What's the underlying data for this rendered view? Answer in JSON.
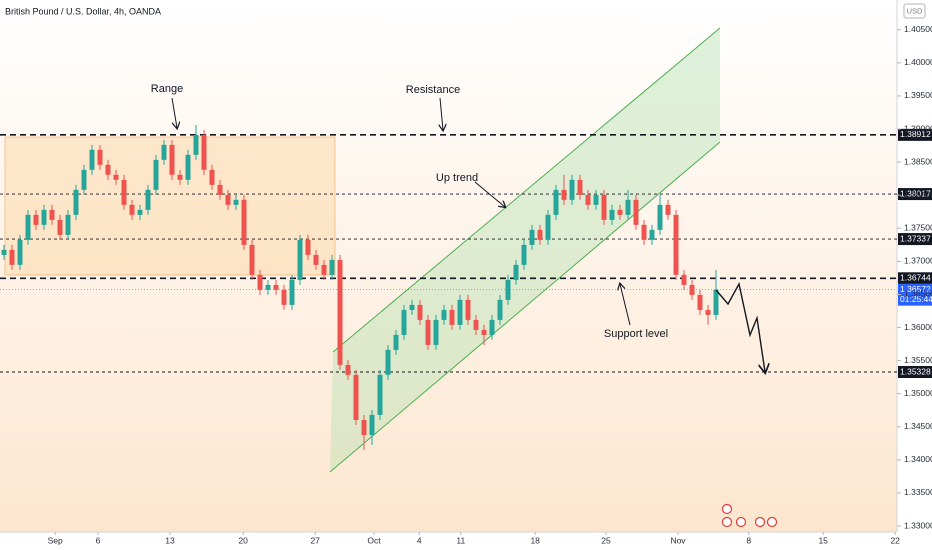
{
  "chart_data": {
    "type": "candlestick",
    "title": "British Pound / U.S. Dollar, 4h, OANDA",
    "currency": "USD",
    "countdown": "01:25:44",
    "up_color": "#26a69a",
    "down_color": "#ef5350",
    "grid": false,
    "open": [
      1.37098,
      1.37174,
      1.36947,
      1.37325,
      1.37703,
      1.37552,
      1.37778,
      1.37627,
      1.374,
      1.37703,
      1.38081,
      1.38383,
      1.38686,
      1.38459,
      1.38308,
      1.38232,
      1.37854,
      1.37703,
      1.37778,
      1.38081,
      1.38534,
      1.38761,
      1.38308,
      1.38232,
      1.3861,
      1.38912,
      1.38383,
      1.38156,
      1.38005,
      1.37854,
      1.3793,
      1.37249,
      1.36796,
      1.36569,
      1.36644,
      1.36569,
      1.36342,
      1.3672,
      1.37325,
      1.37098,
      1.36947,
      1.36796,
      1.37022,
      1.35435,
      1.35284,
      1.34603,
      1.34376,
      1.34679,
      1.35284,
      1.35662,
      1.35888,
      1.36266,
      1.36342,
      1.36115,
      1.35737,
      1.36115,
      1.36266,
      1.3604,
      1.36418,
      1.36115,
      1.35964,
      1.35888,
      1.36115,
      1.36418,
      1.3672,
      1.36947,
      1.37249,
      1.37476,
      1.37325,
      1.37703,
      1.38081,
      1.3793,
      1.38232,
      1.38005,
      1.37854,
      1.38005,
      1.37627,
      1.37778,
      1.37703,
      1.3793,
      1.37552,
      1.37325,
      1.37476,
      1.37854,
      1.37703,
      1.36796,
      1.36644,
      1.36493,
      1.36266,
      1.36191
    ],
    "high": [
      1.37249,
      1.37249,
      1.374,
      1.37778,
      1.37778,
      1.37854,
      1.37854,
      1.37703,
      1.37778,
      1.38156,
      1.38459,
      1.38761,
      1.38761,
      1.38534,
      1.38383,
      1.38308,
      1.3793,
      1.37854,
      1.38156,
      1.3861,
      1.38837,
      1.38837,
      1.38383,
      1.38686,
      1.39063,
      1.38988,
      1.38459,
      1.38232,
      1.38081,
      1.38005,
      1.38005,
      1.37325,
      1.36871,
      1.3672,
      1.3672,
      1.36644,
      1.36796,
      1.374,
      1.374,
      1.37174,
      1.37022,
      1.37098,
      1.37098,
      1.3551,
      1.35359,
      1.34679,
      1.34754,
      1.35359,
      1.35737,
      1.35964,
      1.36342,
      1.36418,
      1.36418,
      1.36191,
      1.36191,
      1.36342,
      1.36342,
      1.36493,
      1.36493,
      1.36191,
      1.3604,
      1.36191,
      1.36493,
      1.36796,
      1.37022,
      1.37325,
      1.37552,
      1.37552,
      1.37778,
      1.38156,
      1.38308,
      1.38308,
      1.38308,
      1.38081,
      1.38081,
      1.38081,
      1.37854,
      1.37854,
      1.38081,
      1.38005,
      1.37627,
      1.37552,
      1.38005,
      1.3793,
      1.37778,
      1.36871,
      1.3672,
      1.36569,
      1.36342,
      1.36871
    ],
    "low": [
      1.37022,
      1.36871,
      1.36871,
      1.37249,
      1.37476,
      1.37476,
      1.37552,
      1.37325,
      1.37325,
      1.37627,
      1.38005,
      1.38308,
      1.38383,
      1.38232,
      1.38156,
      1.37778,
      1.37627,
      1.37627,
      1.37703,
      1.38005,
      1.38459,
      1.38232,
      1.38156,
      1.38156,
      1.38534,
      1.38308,
      1.38081,
      1.3793,
      1.37778,
      1.37778,
      1.37174,
      1.3672,
      1.36493,
      1.36493,
      1.36493,
      1.36266,
      1.36266,
      1.36644,
      1.37022,
      1.36871,
      1.3672,
      1.3672,
      1.35359,
      1.35208,
      1.34528,
      1.3415,
      1.34225,
      1.34603,
      1.35208,
      1.35586,
      1.35813,
      1.36191,
      1.3604,
      1.35662,
      1.35662,
      1.3604,
      1.35964,
      1.35964,
      1.3604,
      1.35888,
      1.35737,
      1.35813,
      1.3604,
      1.36342,
      1.36644,
      1.36871,
      1.37174,
      1.37249,
      1.37249,
      1.37627,
      1.37854,
      1.37854,
      1.3793,
      1.37778,
      1.37778,
      1.37552,
      1.37552,
      1.37627,
      1.37627,
      1.37476,
      1.37249,
      1.37249,
      1.374,
      1.37627,
      1.3672,
      1.36569,
      1.36418,
      1.36191,
      1.3604,
      1.36115
    ],
    "close": [
      1.37174,
      1.36947,
      1.37325,
      1.37703,
      1.37552,
      1.37778,
      1.37627,
      1.374,
      1.37703,
      1.38081,
      1.38383,
      1.38686,
      1.38459,
      1.38308,
      1.38232,
      1.37854,
      1.37703,
      1.37778,
      1.38081,
      1.38534,
      1.38761,
      1.38308,
      1.38232,
      1.3861,
      1.38912,
      1.38383,
      1.38156,
      1.38005,
      1.37854,
      1.3793,
      1.37249,
      1.36796,
      1.36569,
      1.36644,
      1.36569,
      1.36342,
      1.3672,
      1.37325,
      1.37098,
      1.36947,
      1.36796,
      1.37022,
      1.35435,
      1.35284,
      1.34603,
      1.34376,
      1.34679,
      1.35284,
      1.35662,
      1.35888,
      1.36266,
      1.36342,
      1.36115,
      1.35737,
      1.36115,
      1.36266,
      1.3604,
      1.36418,
      1.36115,
      1.35964,
      1.35888,
      1.36115,
      1.36418,
      1.3672,
      1.36947,
      1.37249,
      1.37476,
      1.37325,
      1.37703,
      1.38081,
      1.3793,
      1.38232,
      1.38005,
      1.37854,
      1.38005,
      1.37627,
      1.37778,
      1.37703,
      1.3793,
      1.37552,
      1.37325,
      1.37476,
      1.37854,
      1.37703,
      1.36796,
      1.36644,
      1.36493,
      1.36266,
      1.36191,
      1.36572
    ],
    "xlim": [
      -0.5,
      111.5
    ],
    "xticks": [
      {
        "value": 6.4,
        "label": "Sep"
      },
      {
        "value": 11.75,
        "label": "6"
      },
      {
        "value": 20.75,
        "label": "13"
      },
      {
        "value": 29.9,
        "label": "20"
      },
      {
        "value": 38.9,
        "label": "27"
      },
      {
        "value": 46.25,
        "label": "Oct"
      },
      {
        "value": 51.9,
        "label": "4"
      },
      {
        "value": 57.1,
        "label": "11"
      },
      {
        "value": 66.4,
        "label": "18"
      },
      {
        "value": 75.25,
        "label": "25"
      },
      {
        "value": 84.25,
        "label": "Nov"
      },
      {
        "value": 93.1,
        "label": "8"
      },
      {
        "value": 102.4,
        "label": "15"
      },
      {
        "value": 111.4,
        "label": "22"
      }
    ],
    "ylim": [
      1.3291,
      1.4095
    ],
    "yticks": [
      {
        "value": 1.33,
        "label": "1.33000"
      },
      {
        "value": 1.335,
        "label": "1.33500"
      },
      {
        "value": 1.34,
        "label": "1.34000"
      },
      {
        "value": 1.345,
        "label": "1.34500"
      },
      {
        "value": 1.35,
        "label": "1.35000"
      },
      {
        "value": 1.355,
        "label": "1.35500"
      },
      {
        "value": 1.36,
        "label": "1.36000"
      },
      {
        "value": 1.365,
        "label": "1.36500"
      },
      {
        "value": 1.37,
        "label": "1.37000"
      },
      {
        "value": 1.375,
        "label": "1.37500"
      },
      {
        "value": 1.38,
        "label": "1.38000"
      },
      {
        "value": 1.385,
        "label": "1.38500"
      },
      {
        "value": 1.39,
        "label": "1.39000"
      },
      {
        "value": 1.395,
        "label": "1.39500"
      },
      {
        "value": 1.4,
        "label": "1.40000"
      },
      {
        "value": 1.405,
        "label": "1.40500"
      }
    ],
    "levels": [
      {
        "value": 1.38912,
        "style": "thick"
      },
      {
        "value": 1.38017,
        "style": "thin"
      },
      {
        "value": 1.37337,
        "style": "thin"
      },
      {
        "value": 1.36744,
        "style": "thick"
      },
      {
        "value": 1.35328,
        "style": "thin"
      }
    ],
    "current_price": 1.36572,
    "annotations": {
      "range": "Range",
      "resistance": "Resistance",
      "up_trend": "Up trend",
      "support": "Support level"
    }
  }
}
